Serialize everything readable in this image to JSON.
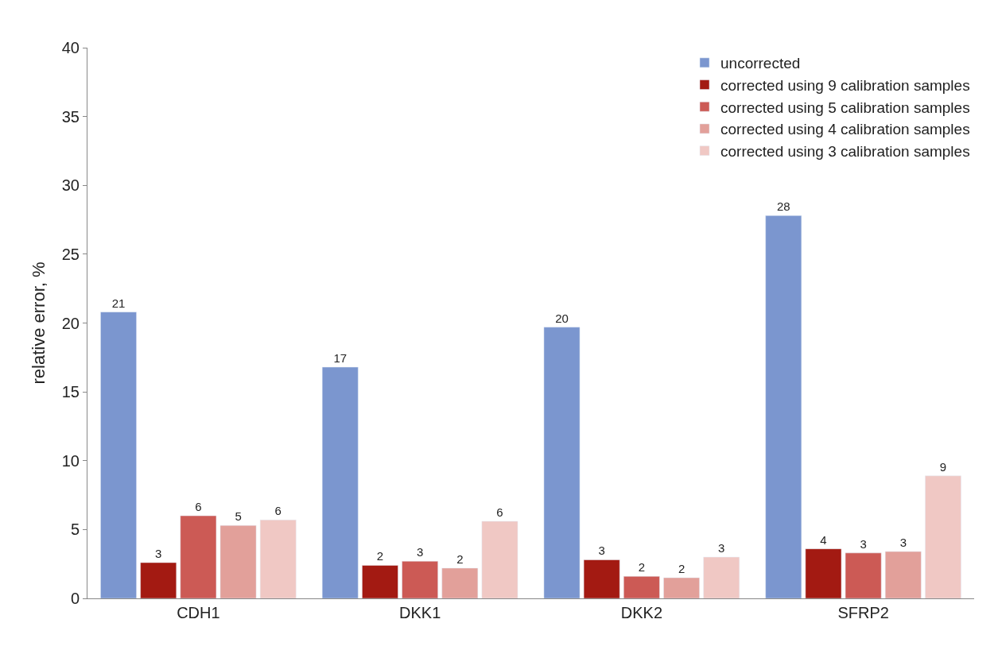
{
  "chart_data": {
    "type": "bar",
    "ylabel": "relative error, %",
    "categories": [
      "CDH1",
      "DKK1",
      "DKK2",
      "SFRP2"
    ],
    "series": [
      {
        "name": "uncorrected",
        "color": "#7b96cf",
        "values": [
          20.8,
          16.8,
          19.7,
          27.8
        ],
        "value_labels": [
          "21",
          "17",
          "20",
          "28"
        ]
      },
      {
        "name": "corrected using 9 calibration samples",
        "color": "#a31a12",
        "values": [
          2.6,
          2.4,
          2.8,
          3.6
        ],
        "value_labels": [
          "3",
          "2",
          "3",
          "4"
        ]
      },
      {
        "name": "corrected using 5 calibration samples",
        "color": "#cc5a55",
        "values": [
          6.0,
          2.7,
          1.6,
          3.3
        ],
        "value_labels": [
          "6",
          "3",
          "2",
          "3"
        ]
      },
      {
        "name": "corrected using 4 calibration samples",
        "color": "#e2a09a",
        "values": [
          5.3,
          2.2,
          1.5,
          3.4
        ],
        "value_labels": [
          "5",
          "2",
          "2",
          "3"
        ]
      },
      {
        "name": "corrected using 3 calibration samples",
        "color": "#f0c8c4",
        "values": [
          5.7,
          5.6,
          3.0,
          8.9
        ],
        "value_labels": [
          "6",
          "6",
          "3",
          "9"
        ]
      }
    ],
    "ylim": [
      0,
      40
    ],
    "yticks": [
      0,
      5,
      10,
      15,
      20,
      25,
      30,
      35,
      40
    ],
    "legend": "top right"
  }
}
